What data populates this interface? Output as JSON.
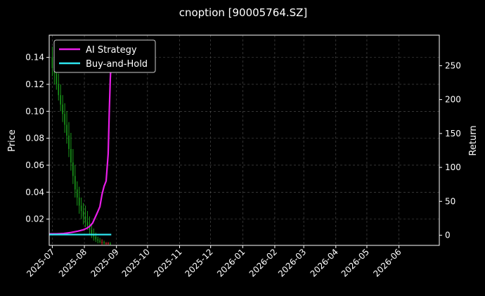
{
  "chart_data": {
    "type": "line",
    "title": "cnoption [90005764.SZ]",
    "xlabel": "",
    "ylabel_left": "Price",
    "ylabel_right": "Return",
    "x_ticks": [
      "2025-07",
      "2025-08",
      "2025-09",
      "2025-10",
      "2025-11",
      "2025-12",
      "2026-01",
      "2026-02",
      "2026-03",
      "2026-04",
      "2026-05",
      "2026-06"
    ],
    "xlim": [
      "2025-06-28",
      "2026-07-10"
    ],
    "y_left_ticks": [
      "0.02",
      "0.04",
      "0.06",
      "0.08",
      "0.10",
      "0.12",
      "0.14"
    ],
    "y_left_lim": [
      0.0005,
      0.1565
    ],
    "y_right_ticks": [
      "0",
      "50",
      "100",
      "150",
      "200",
      "250"
    ],
    "y_right_lim": [
      -15,
      295
    ],
    "grid": true,
    "legend_position": "top-left",
    "colors": {
      "background": "#000000",
      "ai_strategy": "#e81ee8",
      "buy_and_hold": "#2ee6f0",
      "candle_up": "#e53030",
      "candle_down": "#1a9a1a",
      "grid": "#555555"
    },
    "series": [
      {
        "name": "AI Strategy",
        "axis": "right",
        "x": [
          "2025-06-28",
          "2025-07-05",
          "2025-07-12",
          "2025-07-19",
          "2025-07-26",
          "2025-07-31",
          "2025-08-03",
          "2025-08-06",
          "2025-08-09",
          "2025-08-12",
          "2025-08-14",
          "2025-08-16",
          "2025-08-18",
          "2025-08-20",
          "2025-08-22",
          "2025-08-24",
          "2025-08-25",
          "2025-08-26",
          "2025-08-27"
        ],
        "values": [
          2,
          2,
          2.5,
          4,
          6,
          8,
          10,
          13,
          18,
          28,
          35,
          42,
          60,
          72,
          80,
          120,
          180,
          230,
          262
        ]
      },
      {
        "name": "Buy-and-Hold",
        "axis": "right",
        "x": [
          "2025-06-28",
          "2025-07-15",
          "2025-08-01",
          "2025-08-15",
          "2025-08-27"
        ],
        "values": [
          1,
          1,
          1,
          1,
          1
        ]
      }
    ],
    "candles": {
      "axis": "left",
      "dates": [
        "2025-07-01",
        "2025-07-03",
        "2025-07-05",
        "2025-07-07",
        "2025-07-09",
        "2025-07-11",
        "2025-07-13",
        "2025-07-15",
        "2025-07-17",
        "2025-07-19",
        "2025-07-21",
        "2025-07-23",
        "2025-07-25",
        "2025-07-27",
        "2025-07-29",
        "2025-07-31",
        "2025-08-02",
        "2025-08-04",
        "2025-08-06",
        "2025-08-08",
        "2025-08-10",
        "2025-08-12",
        "2025-08-14",
        "2025-08-16",
        "2025-08-18",
        "2025-08-20",
        "2025-08-22",
        "2025-08-24",
        "2025-08-26"
      ],
      "open": [
        0.14,
        0.132,
        0.128,
        0.12,
        0.112,
        0.105,
        0.098,
        0.09,
        0.082,
        0.072,
        0.062,
        0.052,
        0.042,
        0.036,
        0.03,
        0.026,
        0.022,
        0.018,
        0.015,
        0.012,
        0.009,
        0.007,
        0.005,
        0.004,
        0.003,
        0.003,
        0.002,
        0.002,
        0.002
      ],
      "close": [
        0.132,
        0.128,
        0.12,
        0.112,
        0.105,
        0.098,
        0.09,
        0.082,
        0.072,
        0.062,
        0.052,
        0.042,
        0.036,
        0.03,
        0.026,
        0.022,
        0.018,
        0.015,
        0.012,
        0.009,
        0.007,
        0.005,
        0.004,
        0.003,
        0.003,
        0.002,
        0.002,
        0.002,
        0.001
      ],
      "high": [
        0.148,
        0.142,
        0.138,
        0.128,
        0.12,
        0.112,
        0.106,
        0.1,
        0.092,
        0.084,
        0.072,
        0.06,
        0.048,
        0.044,
        0.036,
        0.032,
        0.03,
        0.026,
        0.022,
        0.016,
        0.013,
        0.01,
        0.007,
        0.006,
        0.005,
        0.004,
        0.003,
        0.003,
        0.003
      ],
      "low": [
        0.126,
        0.12,
        0.116,
        0.108,
        0.1,
        0.092,
        0.084,
        0.076,
        0.066,
        0.056,
        0.046,
        0.036,
        0.03,
        0.024,
        0.02,
        0.016,
        0.014,
        0.012,
        0.009,
        0.006,
        0.004,
        0.003,
        0.002,
        0.002,
        0.001,
        0.001,
        0.001,
        0.001,
        0.001
      ]
    }
  }
}
